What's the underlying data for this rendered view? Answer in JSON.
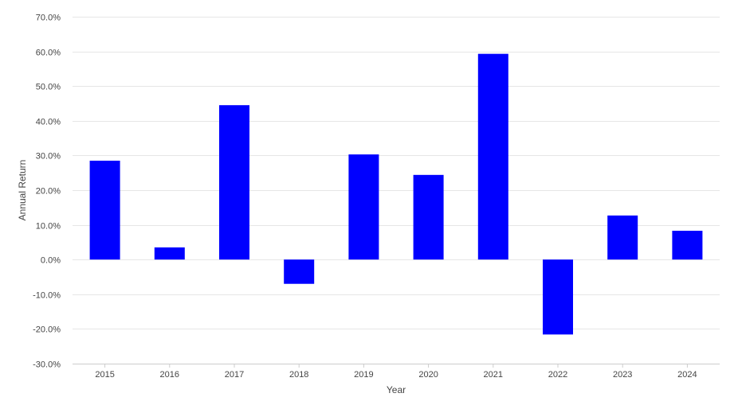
{
  "chart_data": {
    "type": "bar",
    "categories": [
      "2015",
      "2016",
      "2017",
      "2018",
      "2019",
      "2020",
      "2021",
      "2022",
      "2023",
      "2024"
    ],
    "values": [
      28.5,
      3.5,
      44.5,
      -7.0,
      30.3,
      24.4,
      59.3,
      -21.6,
      12.7,
      8.3
    ],
    "xlabel": "Year",
    "ylabel": "Annual Return",
    "ylim": [
      -30,
      70
    ],
    "yticks": [
      "-30.0%",
      "-20.0%",
      "-10.0%",
      "0.0%",
      "10.0%",
      "20.0%",
      "30.0%",
      "40.0%",
      "50.0%",
      "60.0%",
      "70.0%"
    ],
    "bar_color": "#0000ff",
    "grid": true
  }
}
